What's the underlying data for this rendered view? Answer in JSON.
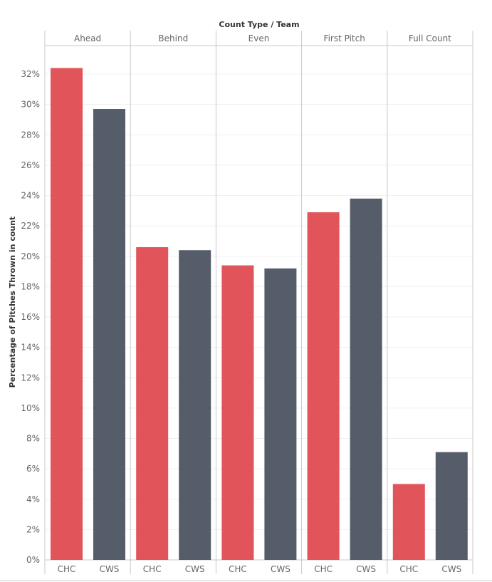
{
  "chart_data": {
    "type": "bar",
    "title": "",
    "column_header_title": "Count Type / Team",
    "ylabel": "Percentage of Pitches Thrown in count",
    "ylim": [
      0,
      34
    ],
    "yticks": [
      "0%",
      "2%",
      "4%",
      "6%",
      "8%",
      "10%",
      "12%",
      "14%",
      "16%",
      "18%",
      "20%",
      "22%",
      "24%",
      "26%",
      "28%",
      "30%",
      "32%"
    ],
    "groups": [
      "Ahead",
      "Behind",
      "Even",
      "First Pitch",
      "Full Count"
    ],
    "teams": [
      "CHC",
      "CWS"
    ],
    "colors": {
      "CHC": "#e0545a",
      "CWS": "#545d69"
    },
    "series": [
      {
        "team": "CHC",
        "values": [
          32.4,
          20.6,
          19.4,
          22.9,
          5.0
        ]
      },
      {
        "team": "CWS",
        "values": [
          29.7,
          20.4,
          19.2,
          23.8,
          7.1
        ]
      }
    ],
    "grid": true
  }
}
